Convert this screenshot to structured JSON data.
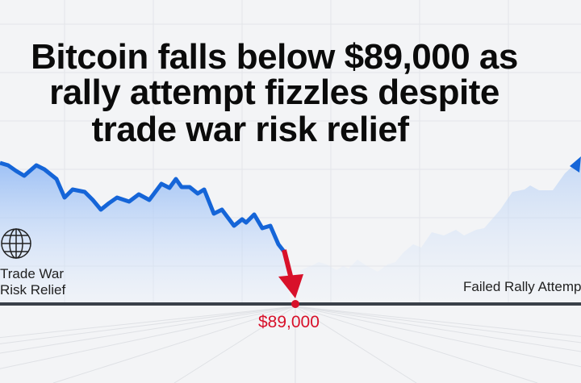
{
  "headline": {
    "line1": "Bitcoin falls below $89,000 as",
    "line2": "rally attempt fizzles despite",
    "line3": "trade war risk relief"
  },
  "labels": {
    "left_line1": "Trade War",
    "left_line2": "Risk Relief",
    "right": "Failed Rally Attempt",
    "price": "$89,000"
  },
  "icons": {
    "left": "globe-icon"
  },
  "colors": {
    "line": "#1565d8",
    "drop": "#d8112a",
    "baseline": "#3a4049"
  }
}
